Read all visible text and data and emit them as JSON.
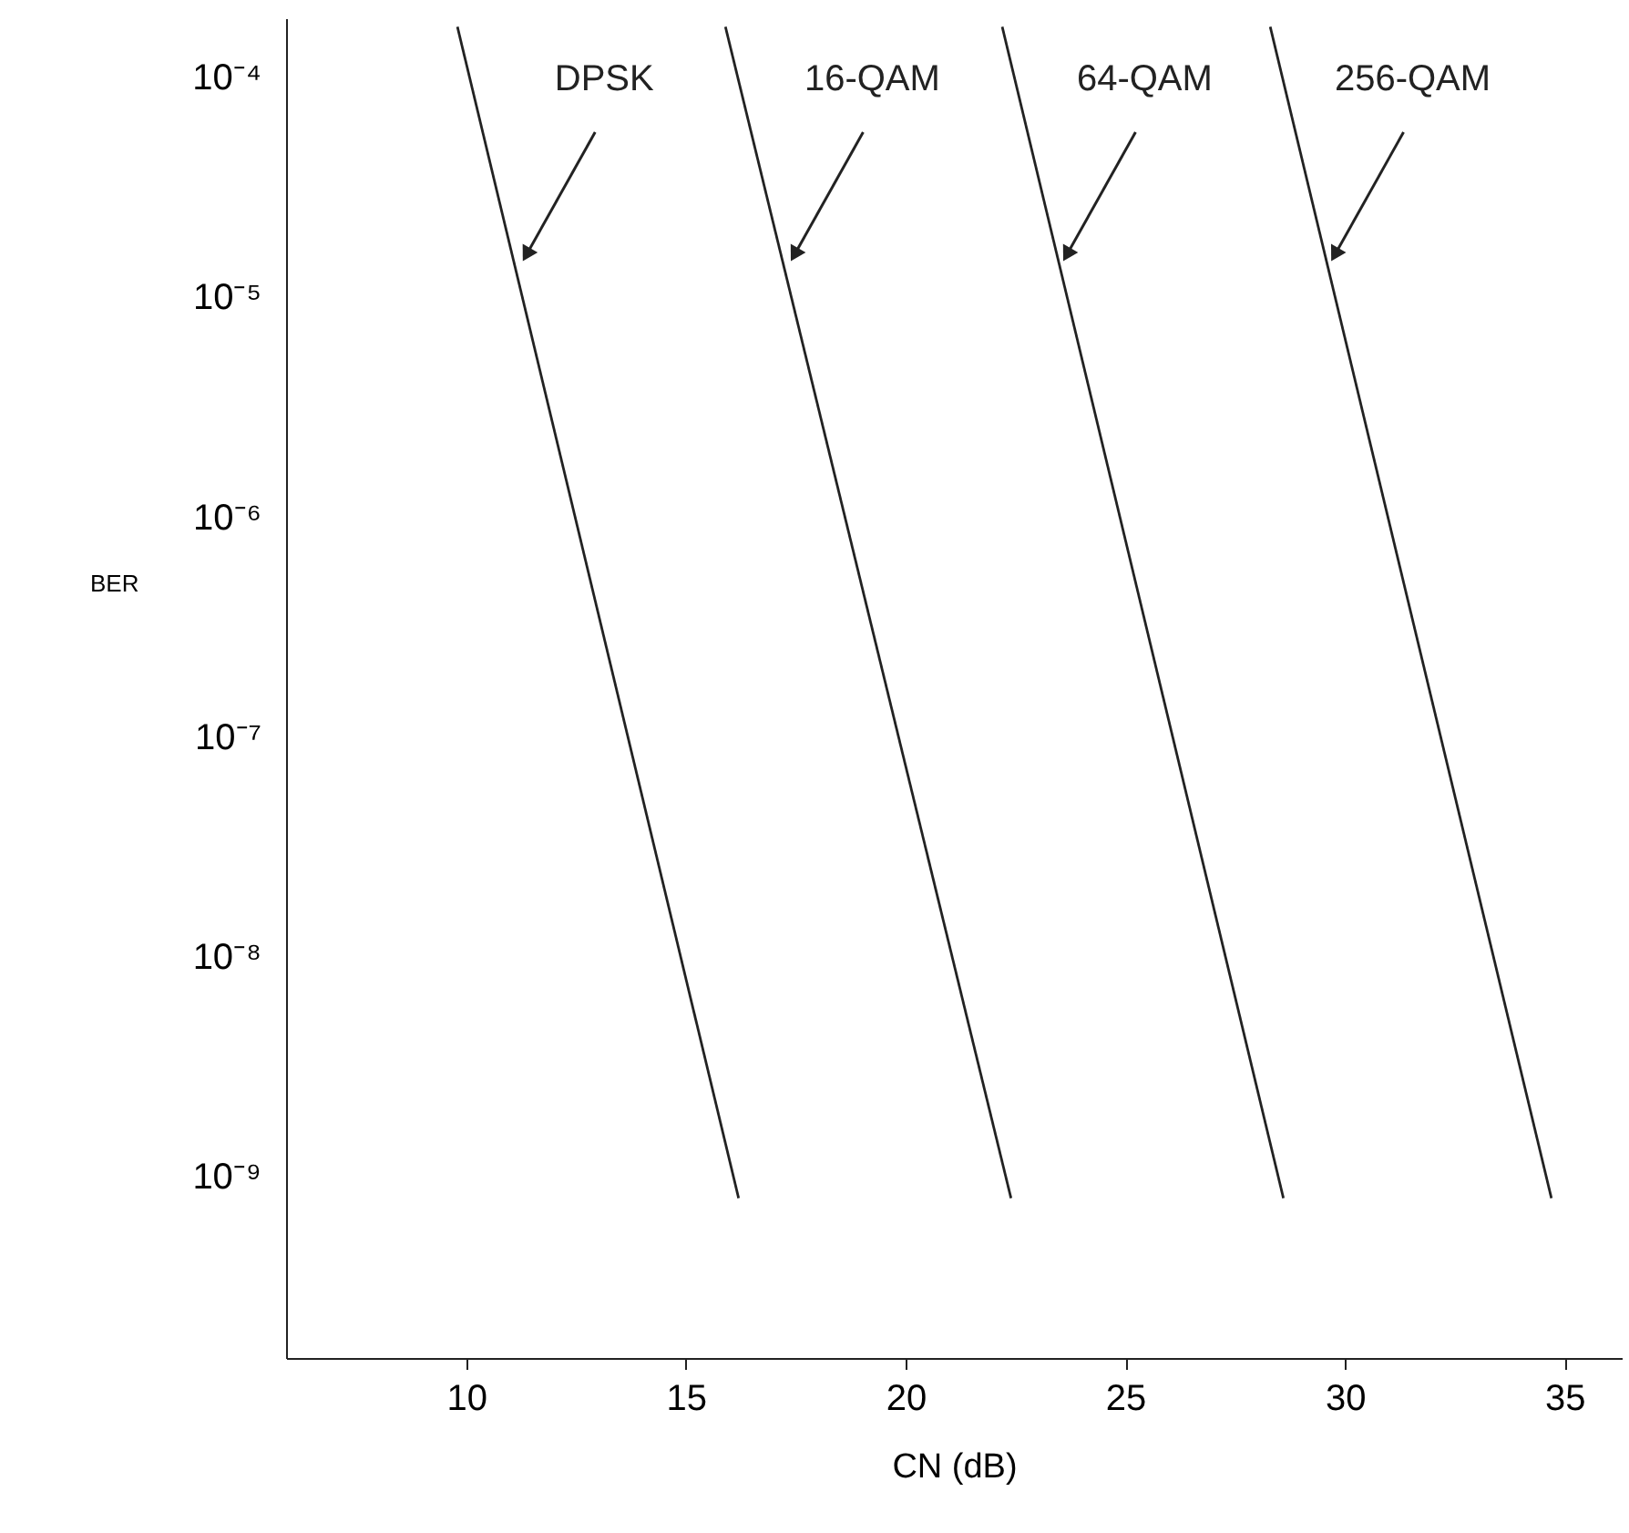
{
  "chart_data": {
    "type": "line",
    "xlabel": "CN (dB)",
    "ylabel": "BER",
    "log": "y",
    "grid": false,
    "marker": "none",
    "line_style": "solid",
    "xlim": [
      5.9,
      36.3
    ],
    "xticks": [
      10,
      15,
      20,
      25,
      30,
      35
    ],
    "ylim": [
      1.5e-10,
      0.000186
    ],
    "yticks": [
      {
        "value": 0.0001,
        "label": "10⁻⁴"
      },
      {
        "value": 1e-05,
        "label": "10⁻⁵"
      },
      {
        "value": 1e-06,
        "label": "10⁻⁶"
      },
      {
        "value": 1e-07,
        "label": "10⁻⁷"
      },
      {
        "value": 1e-08,
        "label": "10⁻⁸"
      },
      {
        "value": 1e-09,
        "label": "10⁻⁹"
      }
    ],
    "series": [
      {
        "color": "#222222",
        "x": [
          9.8,
          16.2
        ],
        "values": [
          0.00017,
          8e-10
        ]
      },
      {
        "color": "#222222",
        "x": [
          15.9,
          22.4
        ],
        "values": [
          0.00017,
          8e-10
        ]
      },
      {
        "color": "#222222",
        "x": [
          22.2,
          28.6
        ],
        "values": [
          0.00017,
          8e-10
        ]
      },
      {
        "color": "#222222",
        "x": [
          28.3,
          34.7
        ],
        "values": [
          0.00017,
          8e-10
        ]
      }
    ],
    "annotations": [
      {
        "text": "DPSK",
        "x": 11.4,
        "y": 1.6e-05
      },
      {
        "text": "16-QAM",
        "x": 17.5,
        "y": 1.6e-05
      },
      {
        "text": "64-QAM",
        "x": 23.7,
        "y": 1.6e-05
      },
      {
        "text": "256-QAM",
        "x": 29.8,
        "y": 1.6e-05
      }
    ]
  }
}
